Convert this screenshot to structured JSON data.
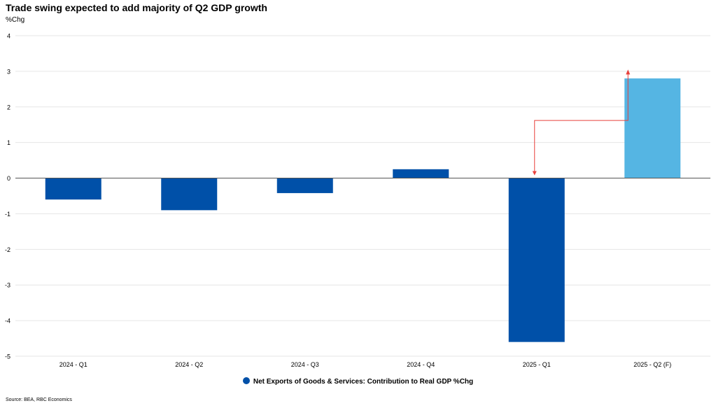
{
  "title": "Trade swing expected to add majority of Q2 GDP growth",
  "source": "Source: BEA, RBC Economics",
  "colors": {
    "actual": "#0050a8",
    "forecast": "#55b5e3",
    "arrow": "#e8413c",
    "grid": "#e6e6e6",
    "zero_line": "#555555"
  },
  "chart_data": {
    "type": "bar",
    "ylabel": "%Chg",
    "ylim": [
      -5,
      4
    ],
    "yticks": [
      4,
      3,
      2,
      1,
      0,
      -1,
      -2,
      -3,
      -4,
      -5
    ],
    "grid": true,
    "legend_position": "bottom",
    "categories": [
      "2024 - Q1",
      "2024 - Q2",
      "2024 - Q3",
      "2024 - Q4",
      "2025 - Q1",
      "2025 - Q2 (F)"
    ],
    "series": [
      {
        "name": "Net Exports of Goods & Services: Contribution to Real GDP %Chg",
        "values": [
          -0.6,
          -0.9,
          -0.42,
          0.25,
          -4.6,
          2.8
        ],
        "forecast_flags": [
          false,
          false,
          false,
          false,
          false,
          true
        ]
      }
    ],
    "annotation": {
      "type": "arrow",
      "from_category": "2025 - Q1",
      "to_category": "2025 - Q2 (F)",
      "to_value": 3.05
    }
  }
}
